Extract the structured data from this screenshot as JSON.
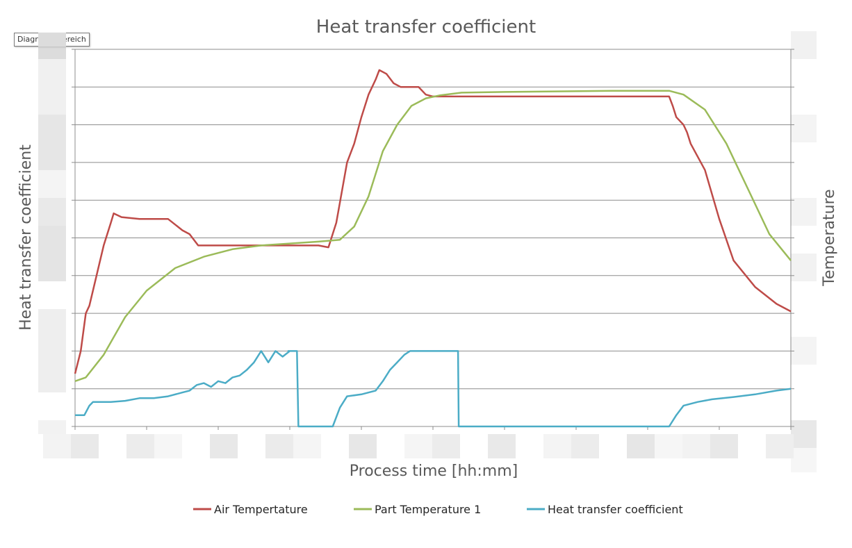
{
  "tooltip": {
    "text": "Diagrammbereich"
  },
  "chart_data": {
    "type": "line",
    "title": "Heat transfer coefficient",
    "xlabel": "Process time [hh:mm]",
    "ylabel_left": "Heat transfer coefficient",
    "ylabel_right": "Temperature",
    "grid": "horizontal",
    "legend_position": "bottom",
    "xlim": [
      0,
      100
    ],
    "ylim": [
      0,
      10
    ],
    "y2lim": [
      0,
      10
    ],
    "series": [
      {
        "name": "Air Tempertature",
        "color": "#be4b48",
        "axis": "right",
        "points": [
          [
            0,
            1.4
          ],
          [
            0.8,
            2.0
          ],
          [
            1.5,
            3.0
          ],
          [
            2.0,
            3.2
          ],
          [
            3.0,
            4.0
          ],
          [
            4.0,
            4.8
          ],
          [
            5.0,
            5.4
          ],
          [
            5.4,
            5.65
          ],
          [
            6.5,
            5.55
          ],
          [
            9,
            5.5
          ],
          [
            13,
            5.5
          ],
          [
            15,
            5.2
          ],
          [
            16,
            5.1
          ],
          [
            17.2,
            4.8
          ],
          [
            19,
            4.8
          ],
          [
            30,
            4.8
          ],
          [
            34,
            4.8
          ],
          [
            35.4,
            4.75
          ],
          [
            36.5,
            5.4
          ],
          [
            38,
            7.0
          ],
          [
            39,
            7.5
          ],
          [
            40,
            8.2
          ],
          [
            41,
            8.8
          ],
          [
            42,
            9.2
          ],
          [
            42.5,
            9.45
          ],
          [
            43.5,
            9.35
          ],
          [
            44.5,
            9.1
          ],
          [
            45.5,
            9.0
          ],
          [
            48,
            9.0
          ],
          [
            49,
            8.8
          ],
          [
            50,
            8.75
          ],
          [
            51,
            8.75
          ],
          [
            83,
            8.75
          ],
          [
            83.5,
            8.5
          ],
          [
            84,
            8.2
          ],
          [
            85,
            8.0
          ],
          [
            85.5,
            7.8
          ],
          [
            86,
            7.5
          ],
          [
            88,
            6.8
          ],
          [
            90,
            5.5
          ],
          [
            92,
            4.4
          ],
          [
            95,
            3.7
          ],
          [
            98,
            3.25
          ],
          [
            100,
            3.05
          ]
        ]
      },
      {
        "name": "Part Temperature 1",
        "color": "#9bbb59",
        "axis": "right",
        "points": [
          [
            0,
            1.2
          ],
          [
            1.5,
            1.3
          ],
          [
            4,
            1.9
          ],
          [
            7,
            2.9
          ],
          [
            10,
            3.6
          ],
          [
            14,
            4.2
          ],
          [
            18,
            4.5
          ],
          [
            22,
            4.7
          ],
          [
            26,
            4.8
          ],
          [
            30,
            4.85
          ],
          [
            34,
            4.9
          ],
          [
            37,
            4.95
          ],
          [
            39,
            5.3
          ],
          [
            41,
            6.1
          ],
          [
            43,
            7.3
          ],
          [
            45,
            8.0
          ],
          [
            47,
            8.5
          ],
          [
            49,
            8.7
          ],
          [
            51,
            8.78
          ],
          [
            54,
            8.85
          ],
          [
            60,
            8.87
          ],
          [
            75,
            8.9
          ],
          [
            83,
            8.9
          ],
          [
            85,
            8.8
          ],
          [
            88,
            8.4
          ],
          [
            91,
            7.5
          ],
          [
            94,
            6.3
          ],
          [
            97,
            5.1
          ],
          [
            100,
            4.4
          ]
        ]
      },
      {
        "name": "Heat transfer coefficient",
        "color": "#4bacc6",
        "axis": "left",
        "points": [
          [
            0,
            0.3
          ],
          [
            1.3,
            0.3
          ],
          [
            2.0,
            0.55
          ],
          [
            2.5,
            0.65
          ],
          [
            5,
            0.65
          ],
          [
            7,
            0.68
          ],
          [
            9,
            0.75
          ],
          [
            11,
            0.75
          ],
          [
            13,
            0.8
          ],
          [
            15,
            0.9
          ],
          [
            16,
            0.95
          ],
          [
            17,
            1.1
          ],
          [
            18,
            1.15
          ],
          [
            19,
            1.05
          ],
          [
            20,
            1.2
          ],
          [
            21,
            1.15
          ],
          [
            22,
            1.3
          ],
          [
            23,
            1.35
          ],
          [
            24,
            1.5
          ],
          [
            25,
            1.7
          ],
          [
            26,
            2.0
          ],
          [
            27,
            1.7
          ],
          [
            28,
            2.0
          ],
          [
            29,
            1.85
          ],
          [
            30,
            2.0
          ],
          [
            31,
            2.0
          ],
          [
            29.8,
            2.0
          ],
          [
            30,
            2.0
          ],
          [
            31,
            2.0
          ],
          [
            31.2,
            0.0
          ],
          [
            36,
            0.0
          ],
          [
            37,
            0.5
          ],
          [
            38,
            0.8
          ],
          [
            40,
            0.85
          ],
          [
            42,
            0.95
          ],
          [
            43,
            1.2
          ],
          [
            44,
            1.5
          ],
          [
            45,
            1.7
          ],
          [
            46,
            1.9
          ],
          [
            46.8,
            2.0
          ],
          [
            50,
            2.0
          ],
          [
            53.5,
            2.0
          ],
          [
            53.6,
            0.0
          ],
          [
            83,
            0.0
          ],
          [
            84,
            0.3
          ],
          [
            85,
            0.55
          ],
          [
            87,
            0.65
          ],
          [
            89,
            0.72
          ],
          [
            92,
            0.78
          ],
          [
            95,
            0.85
          ],
          [
            98,
            0.95
          ],
          [
            100,
            1.0
          ]
        ]
      }
    ]
  }
}
